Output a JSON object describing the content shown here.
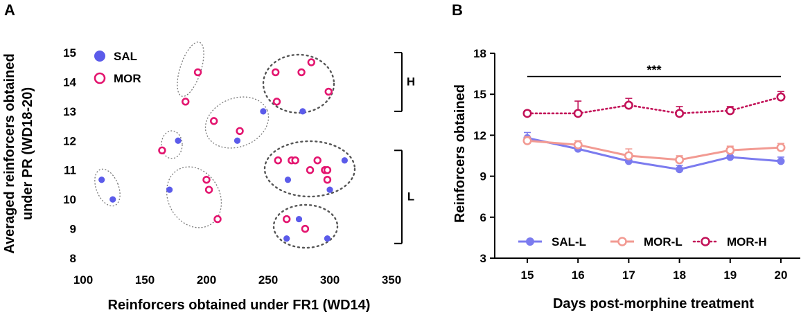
{
  "panel_a": {
    "letter": "A"
  },
  "panel_b": {
    "letter": "B"
  },
  "chart_data": [
    {
      "type": "scatter",
      "title": "",
      "xlabel": "Reinforcers obtained under FR1 (WD14)",
      "ylabel_lines": [
        "Averaged reinforcers obtained",
        "under PR (WD18-20)"
      ],
      "xlim": [
        100,
        350
      ],
      "ylim": [
        8,
        15
      ],
      "xticks": [
        100,
        150,
        200,
        250,
        300,
        350
      ],
      "yticks": [
        8,
        9,
        10,
        11,
        12,
        13,
        14,
        15
      ],
      "legend": [
        {
          "label": "SAL",
          "color": "#5b5bea",
          "marker": "filled"
        },
        {
          "label": "MOR",
          "color": "#e3156f",
          "marker": "open"
        }
      ],
      "series": [
        {
          "name": "SAL",
          "color": "#5b5bea",
          "points": [
            [
              115,
              10.67
            ],
            [
              124,
              10.0
            ],
            [
              170,
              10.33
            ],
            [
              177,
              12.0
            ],
            [
              225,
              12.0
            ],
            [
              246,
              13.0
            ],
            [
              278,
              13.0
            ],
            [
              266,
              10.67
            ],
            [
              300,
              10.33
            ],
            [
              312,
              11.33
            ],
            [
              275,
              9.33
            ],
            [
              265,
              8.67
            ],
            [
              298,
              8.67
            ]
          ]
        },
        {
          "name": "MOR",
          "color": "#e3156f",
          "points": [
            [
              183,
              13.33
            ],
            [
              193,
              14.33
            ],
            [
              164,
              11.67
            ],
            [
              200,
              10.67
            ],
            [
              202,
              10.33
            ],
            [
              209,
              9.33
            ],
            [
              206,
              12.67
            ],
            [
              227,
              12.33
            ],
            [
              256,
              14.33
            ],
            [
              257,
              13.33
            ],
            [
              277,
              14.33
            ],
            [
              285,
              14.67
            ],
            [
              299,
              13.67
            ],
            [
              258,
              11.33
            ],
            [
              269,
              11.33
            ],
            [
              272,
              11.33
            ],
            [
              284,
              11.0
            ],
            [
              290,
              11.33
            ],
            [
              296,
              11.0
            ],
            [
              298,
              11.0
            ],
            [
              298,
              10.67
            ],
            [
              265,
              9.33
            ],
            [
              280,
              9.0
            ]
          ]
        }
      ],
      "brackets": [
        {
          "label": "H",
          "from": 13.0,
          "to": 15.0
        },
        {
          "label": "L",
          "from": 8.5,
          "to": 11.67
        }
      ]
    },
    {
      "type": "line",
      "title": "",
      "xlabel": "Days post-morphine treatment",
      "ylabel": "Reinforcers obtained",
      "x": [
        15,
        16,
        17,
        18,
        19,
        20
      ],
      "ylim": [
        3,
        18
      ],
      "yticks": [
        3,
        6,
        9,
        12,
        15,
        18
      ],
      "significance": {
        "label": "***",
        "from_x": 15,
        "to_x": 20,
        "y": 16.3
      },
      "series": [
        {
          "name": "SAL-L",
          "color": "#7b7bef",
          "style": "solid-filled",
          "values": [
            11.8,
            11.0,
            10.1,
            9.5,
            10.4,
            10.1
          ],
          "errors": [
            0.4,
            0.3,
            0.3,
            0.3,
            0.3,
            0.3
          ]
        },
        {
          "name": "MOR-L",
          "color": "#f29a92",
          "style": "solid-open",
          "values": [
            11.6,
            11.3,
            10.5,
            10.2,
            10.9,
            11.1
          ],
          "errors": [
            0.3,
            0.3,
            0.5,
            0.3,
            0.3,
            0.3
          ]
        },
        {
          "name": "MOR-H",
          "color": "#c21258",
          "style": "dotted-open",
          "values": [
            13.6,
            13.6,
            14.2,
            13.6,
            13.8,
            14.8
          ],
          "errors": [
            0.2,
            0.9,
            0.5,
            0.5,
            0.3,
            0.4
          ]
        }
      ]
    }
  ]
}
